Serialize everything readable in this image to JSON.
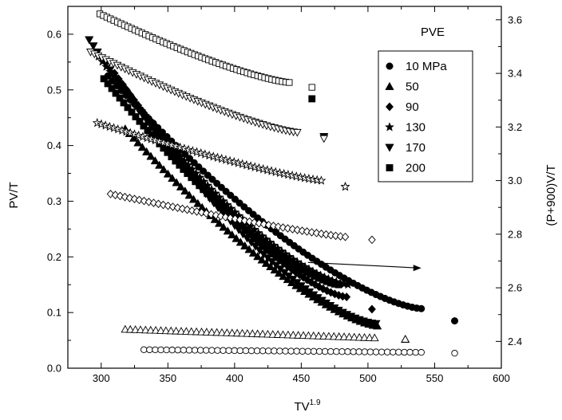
{
  "chart_data": {
    "type": "scatter",
    "title": "",
    "xlabel": "TV",
    "xlabel_superscript": "1.9",
    "ylabel": "PV/T",
    "y2label": "(P+900)V/T",
    "xlim": [
      275,
      600
    ],
    "ylim": [
      0,
      0.65
    ],
    "y2lim": [
      2.3,
      3.65
    ],
    "x_ticks": [
      "300",
      "350",
      "400",
      "450",
      "500",
      "550",
      "600"
    ],
    "y_ticks": [
      "0.0",
      "0.1",
      "0.2",
      "0.3",
      "0.4",
      "0.5",
      "0.6"
    ],
    "y2_ticks": [
      "2.4",
      "2.6",
      "2.8",
      "3.0",
      "3.2",
      "3.4",
      "3.6"
    ],
    "grid": false,
    "legend": {
      "title": "PVE",
      "position": "top-right",
      "entries": [
        "10 MPa",
        "50",
        "90",
        "130",
        "170",
        "200"
      ]
    },
    "annotation": {
      "type": "arrow",
      "direction": "right-axis",
      "from": [
        455,
        0.19
      ],
      "to": [
        540,
        0.18
      ]
    },
    "series": [
      {
        "name": "10 MPa",
        "marker": "circle",
        "axis": "left",
        "start": [
          305,
          0.525
        ],
        "end": [
          540,
          0.107
        ],
        "count": 70,
        "curve": 1.45,
        "isolated": [
          565,
          0.085
        ]
      },
      {
        "name": "50",
        "marker": "triangle-up",
        "axis": "left",
        "start": [
          318,
          0.43
        ],
        "end": [
          507,
          0.076
        ],
        "count": 60,
        "curve": 1.4,
        "isolated": [
          528,
          0.052
        ]
      },
      {
        "name": "90",
        "marker": "diamond",
        "axis": "left",
        "start": [
          310,
          0.53
        ],
        "end": [
          484,
          0.128
        ],
        "count": 60,
        "curve": 1.45,
        "isolated": [
          503,
          0.106
        ]
      },
      {
        "name": "130",
        "marker": "star",
        "axis": "left",
        "start": [
          298,
          0.56
        ],
        "end": [
          485,
          0.15
        ],
        "count": 65,
        "curve": 1.45,
        "isolated": [
          483,
          0.326
        ]
      },
      {
        "name": "170",
        "marker": "triangle-down",
        "axis": "left",
        "start": [
          291,
          0.59
        ],
        "end": [
          506,
          0.08
        ],
        "count": 70,
        "curve": 1.5,
        "isolated": [
          467,
          0.416
        ]
      },
      {
        "name": "200",
        "marker": "square",
        "axis": "left",
        "start": [
          302,
          0.52
        ],
        "end": [
          478,
          0.15
        ],
        "count": 60,
        "curve": 1.4,
        "isolated": [
          458,
          0.484
        ]
      },
      {
        "name": "10 MPa",
        "marker": "circle-open",
        "axis": "right",
        "start": [
          332,
          2.369
        ],
        "end": [
          540,
          2.359
        ],
        "count": 50,
        "curve": 1.0,
        "isolated": [
          565,
          2.356
        ]
      },
      {
        "name": "50",
        "marker": "triangle-up-open",
        "axis": "right",
        "start": [
          318,
          2.445
        ],
        "end": [
          505,
          2.413
        ],
        "count": 50,
        "curve": 1.0,
        "isolated": [
          528,
          2.408
        ]
      },
      {
        "name": "90",
        "marker": "diamond-open",
        "axis": "right",
        "start": [
          307,
          2.95
        ],
        "end": [
          483,
          2.79
        ],
        "count": 50,
        "curve": 1.15,
        "isolated": [
          503,
          2.779
        ]
      },
      {
        "name": "130",
        "marker": "star-open",
        "axis": "right",
        "start": [
          297,
          3.215
        ],
        "end": [
          465,
          3.0
        ],
        "count": 55,
        "curve": 1.2,
        "isolated": [
          483,
          2.977
        ]
      },
      {
        "name": "170",
        "marker": "triangle-down-open",
        "axis": "right",
        "start": [
          292,
          3.48
        ],
        "end": [
          447,
          3.18
        ],
        "count": 55,
        "curve": 1.3,
        "isolated": [
          467,
          3.157
        ]
      },
      {
        "name": "200",
        "marker": "square-open",
        "axis": "right",
        "start": [
          299,
          3.622
        ],
        "end": [
          441,
          3.366
        ],
        "count": 55,
        "curve": 1.3,
        "isolated": [
          458,
          3.348
        ]
      }
    ]
  }
}
